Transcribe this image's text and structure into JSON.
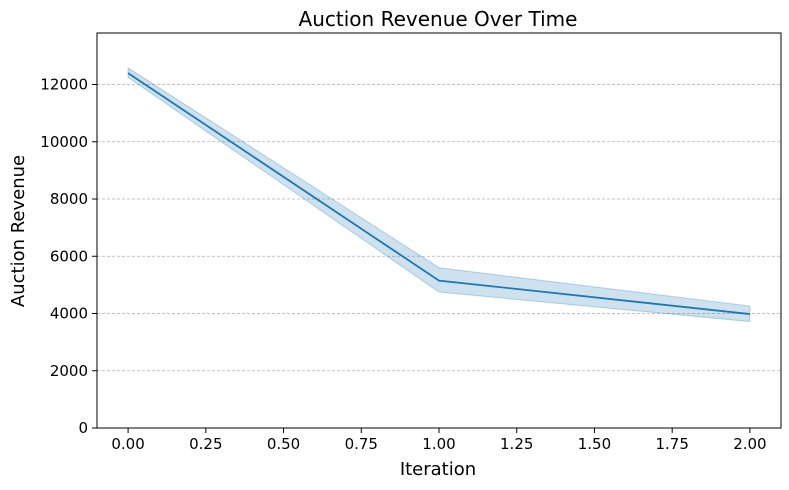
{
  "chart_data": {
    "type": "line",
    "title": "Auction Revenue Over Time",
    "xlabel": "Iteration",
    "ylabel": "Auction Revenue",
    "xlim": [
      -0.1,
      2.1
    ],
    "ylim": [
      0,
      13800
    ],
    "xticks": [
      0.0,
      0.25,
      0.5,
      0.75,
      1.0,
      1.25,
      1.5,
      1.75,
      2.0
    ],
    "xtick_labels": [
      "0.00",
      "0.25",
      "0.50",
      "0.75",
      "1.00",
      "1.25",
      "1.50",
      "1.75",
      "2.00"
    ],
    "yticks": [
      0,
      2000,
      4000,
      6000,
      8000,
      10000,
      12000
    ],
    "ytick_labels": [
      "0",
      "2000",
      "4000",
      "6000",
      "8000",
      "10000",
      "12000"
    ],
    "grid": "y-dashed",
    "series": [
      {
        "x": [
          0,
          1,
          2
        ],
        "values": [
          12400,
          5150,
          3980
        ],
        "lower": [
          12250,
          4750,
          3720
        ],
        "upper": [
          12580,
          5600,
          4260
        ],
        "color": "#1f77b4",
        "band_color": "#1f77b4"
      }
    ]
  }
}
